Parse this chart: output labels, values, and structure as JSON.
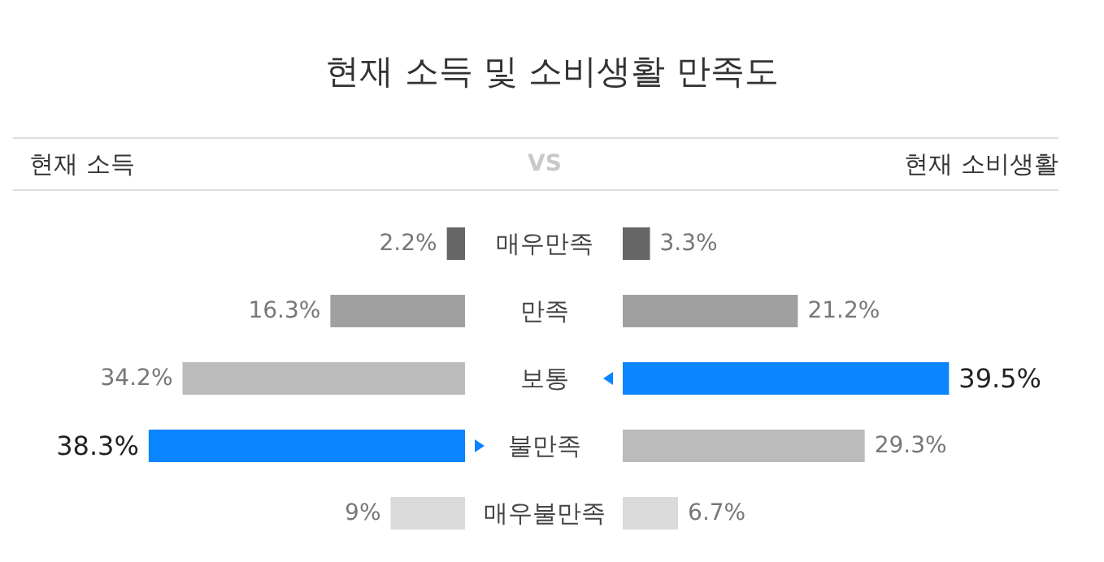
{
  "chart_data": [
    {
      "type": "bar",
      "orientation": "horizontal",
      "title": "현재 소득 및 소비생활 만족도",
      "annotations": [
        "VS"
      ],
      "categories": [
        "매우만족",
        "만족",
        "보통",
        "불만족",
        "매우불만족"
      ],
      "series": [
        {
          "name": "현재 소득",
          "values": [
            2.2,
            16.3,
            34.2,
            38.3,
            9
          ],
          "value_labels": [
            "2.2%",
            "16.3%",
            "34.2%",
            "38.3%",
            "9%"
          ],
          "colors": [
            "#666666",
            "#a0a0a0",
            "#bbbbbb",
            "#0a84ff",
            "#dadada"
          ]
        }
      ]
    },
    {
      "type": "bar",
      "orientation": "horizontal",
      "categories": [
        null,
        null,
        null,
        null,
        null
      ],
      "series": [
        {
          "name": "현재 소비생활",
          "values": [
            3.3,
            21.2,
            39.5,
            29.3,
            6.7
          ],
          "value_labels": [
            "3.3%",
            "21.2%",
            "39.5%",
            "29.3%",
            "6.7%"
          ],
          "colors": [
            "#666666",
            "#a0a0a0",
            "#0a84ff",
            "#bbbbbb",
            "#dadada"
          ]
        }
      ]
    }
  ]
}
